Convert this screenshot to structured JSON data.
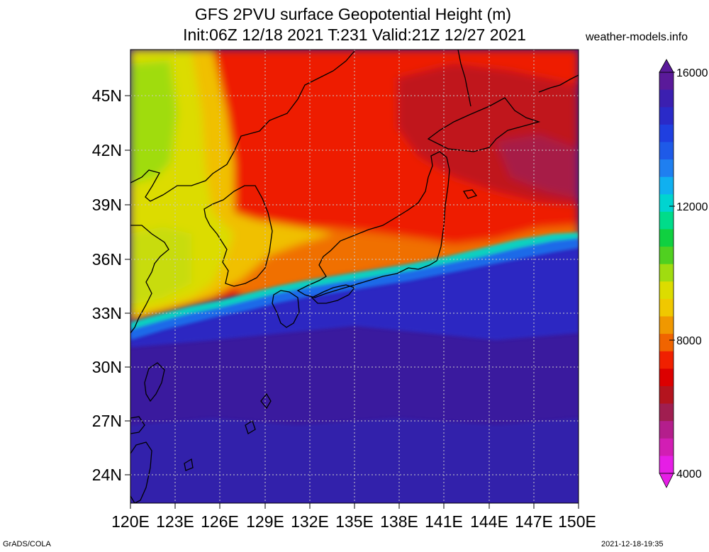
{
  "header": {
    "title_line1": "GFS 2PVU surface Geopotential Height (m)",
    "title_line2": "Init:06Z 12/18 2021 T:231 Valid:21Z 12/27 2021",
    "site": "weather-models.info"
  },
  "map": {
    "lat_labels": [
      "45N",
      "42N",
      "39N",
      "36N",
      "33N",
      "30N",
      "27N",
      "24N"
    ],
    "lon_labels": [
      "120E",
      "123E",
      "126E",
      "129E",
      "132E",
      "135E",
      "138E",
      "141E",
      "144E",
      "147E",
      "150E"
    ],
    "lon_range": [
      120,
      150
    ],
    "lat_range": [
      22.5,
      47.3
    ]
  },
  "colorbar": {
    "labels": [
      "16000",
      "12000",
      "8000",
      "4000"
    ],
    "colors": [
      "#5a1a9a",
      "#3b1fb0",
      "#2a2ac8",
      "#1f3fe0",
      "#1e5ae8",
      "#1f7ff0",
      "#10b0f0",
      "#00d4d0",
      "#00dc8a",
      "#10d040",
      "#50d020",
      "#a0dc10",
      "#dcdc00",
      "#f0c800",
      "#f09800",
      "#f06400",
      "#f02000",
      "#dc0000",
      "#b4141e",
      "#a01e50",
      "#b41e8c",
      "#d21eb4",
      "#e61ee6"
    ]
  },
  "footer": {
    "left": "GrADS/COLA",
    "right": "2021-12-18-19:35"
  }
}
